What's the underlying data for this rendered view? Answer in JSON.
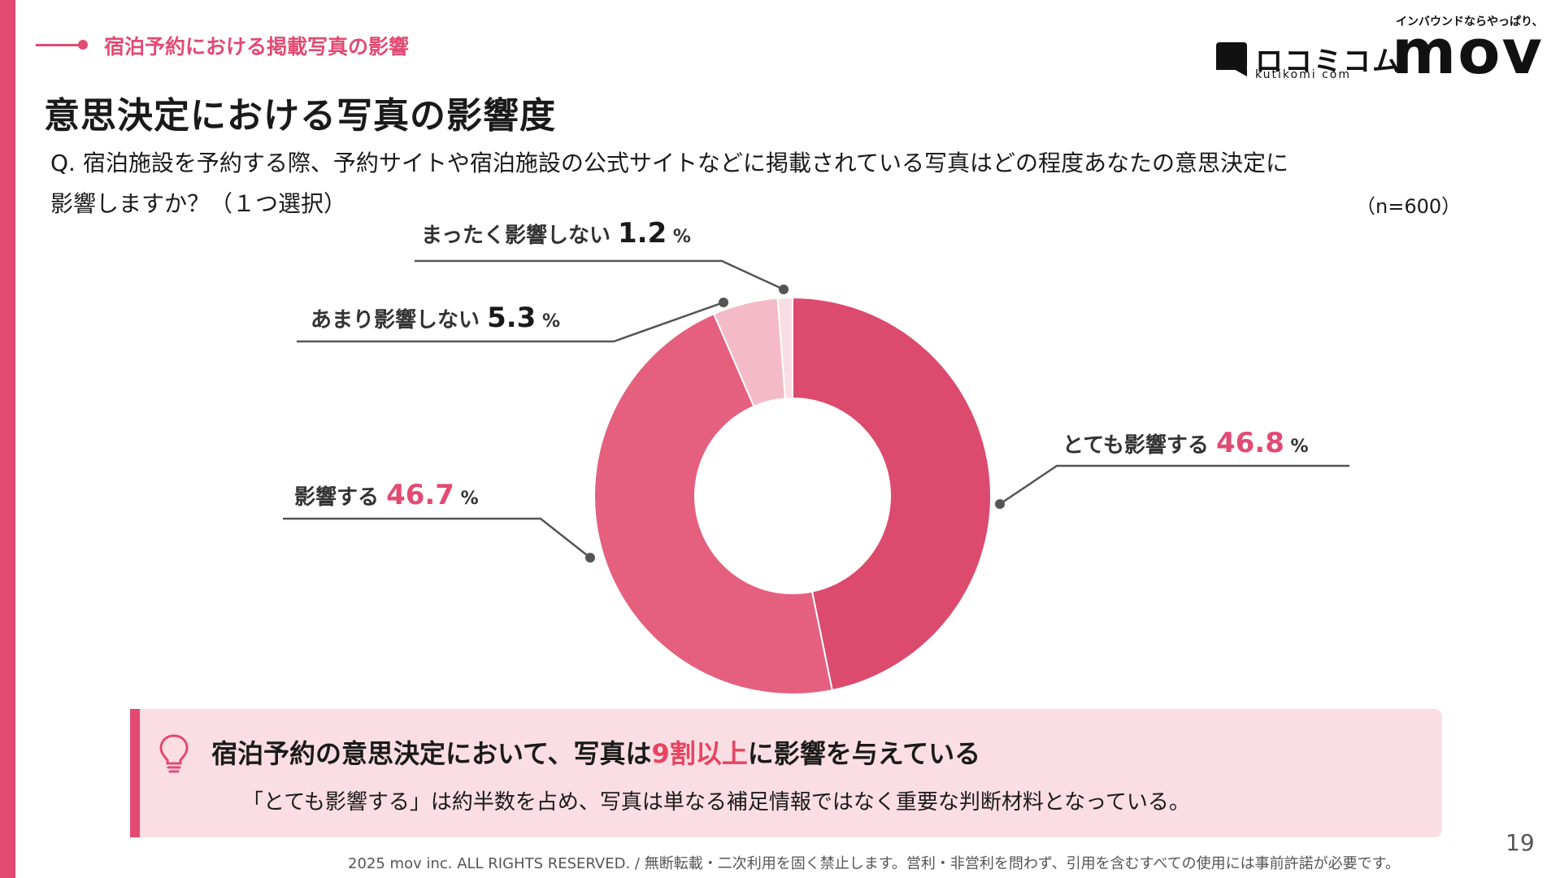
{
  "header": {
    "section_label": "宿泊予約における掲載写真の影響",
    "title": "意思決定における写真の影響度",
    "question_line1": "Q. 宿泊施設を予約する際、予約サイトや宿泊施設の公式サイトなどに掲載されている写真はどの程度あなたの意思決定に",
    "question_line2": "影響しますか？（１つ選択）",
    "sample_size": "（n=600）"
  },
  "logos": {
    "kutikomi_mark": "ロコミコム",
    "kutikomi_sub": "kutikomi com",
    "mov_tagline": "インバウンドならやっぱり、",
    "mov_mark": "mov"
  },
  "chart_data": {
    "type": "pie",
    "donut": true,
    "unit": "%",
    "slices": [
      {
        "label": "とても影響する",
        "value": 46.8,
        "color": "#dc4a6e"
      },
      {
        "label": "影響する",
        "value": 46.7,
        "color": "#e5607e"
      },
      {
        "label": "あまり影響しない",
        "value": 5.3,
        "color": "#f5bac8"
      },
      {
        "label": "まったく影響しない",
        "value": 1.2,
        "color": "#fadde4"
      }
    ],
    "highlight_color": "#e34a72"
  },
  "callout": {
    "headline_prefix": "宿泊予約の意思決定において、写真は",
    "headline_highlight": "9割以上",
    "headline_suffix": "に影響を与えている",
    "body": "「とても影響する」は約半数を占め、写真は単なる補足情報ではなく重要な判断材料となっている。"
  },
  "footer": {
    "copyright": "2025 mov inc. ALL RIGHTS RESERVED. / 無断転載・二次利用を固く禁止します。営利・非営利を問わず、引用を含むすべての使用には事前許諾が必要です。",
    "page_number": "19"
  }
}
